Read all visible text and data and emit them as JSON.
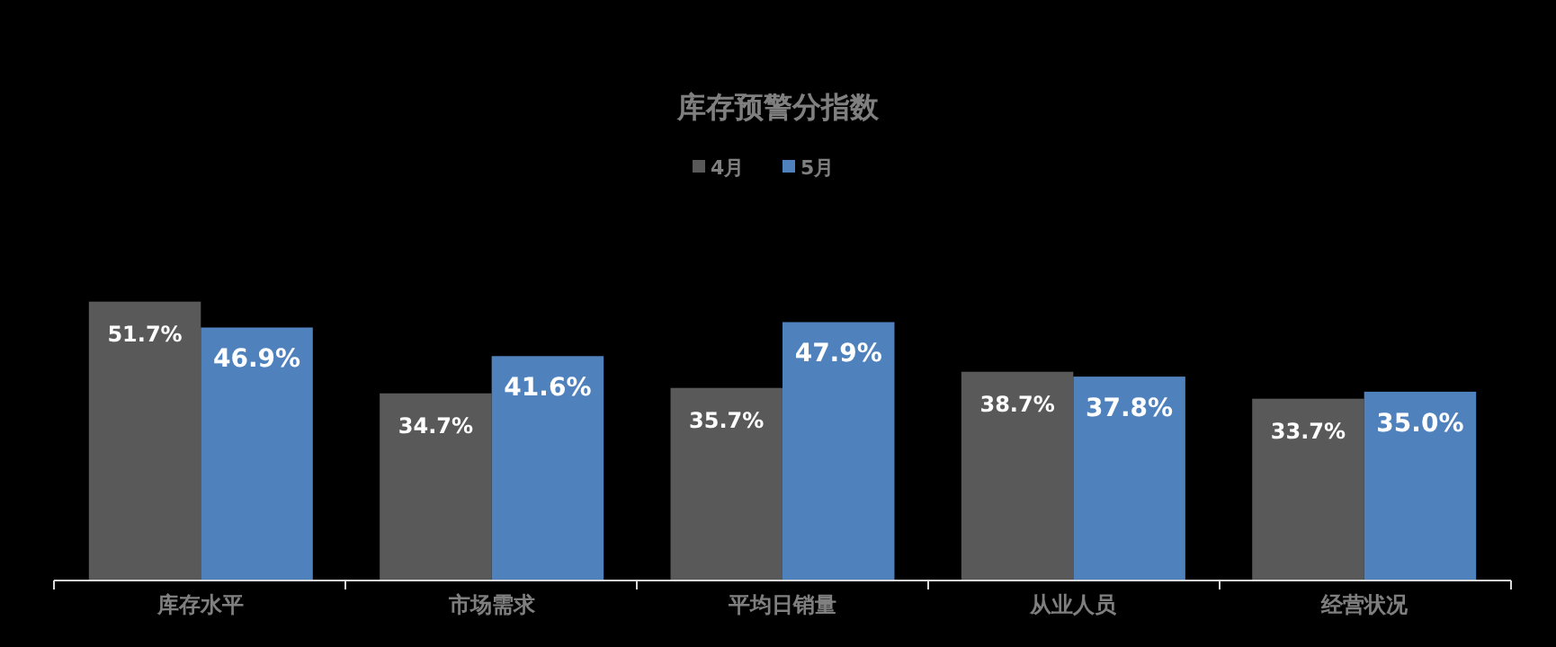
{
  "chart_data": {
    "type": "bar",
    "title": "库存预警分指数",
    "categories": [
      "库存水平",
      "市场需求",
      "平均日销量",
      "从业人员",
      "经营状况"
    ],
    "series": [
      {
        "name": "4月",
        "color": "#595959",
        "values": [
          51.7,
          34.7,
          35.7,
          38.7,
          33.7
        ],
        "value_labels": [
          "51.7%",
          "34.7%",
          "35.7%",
          "38.7%",
          "33.7%"
        ]
      },
      {
        "name": "5月",
        "color": "#4f81bd",
        "values": [
          46.9,
          41.6,
          47.9,
          37.8,
          35.0
        ],
        "value_labels": [
          "46.9%",
          "41.6%",
          "47.9%",
          "37.8%",
          "35.0%"
        ]
      }
    ],
    "tick_labels": "x",
    "legend": "top"
  }
}
